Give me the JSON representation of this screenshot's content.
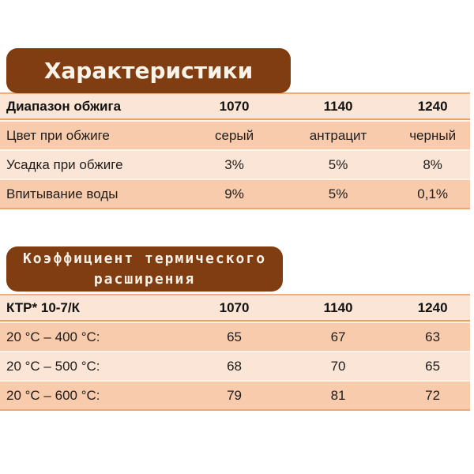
{
  "colors": {
    "heading_background": "#803D12",
    "heading_text": "#FBF2E8",
    "row_light": "#FBE5D6",
    "row_dark": "#F8CBAD",
    "border_orange": "#EEA873",
    "body_text": "#1F1C1A"
  },
  "section1": {
    "title": "Характеристики",
    "table": {
      "header": [
        "Диапазон обжига",
        "1070",
        "1140",
        "1240"
      ],
      "rows": [
        [
          "Цвет при обжиге",
          "серый",
          "антрацит",
          "черный"
        ],
        [
          "Усадка при обжиге",
          "3%",
          "5%",
          "8%"
        ],
        [
          "Впитывание воды",
          "9%",
          "5%",
          "0,1%"
        ]
      ]
    }
  },
  "section2": {
    "title_line1": "Коэффициент термического",
    "title_line2": "расширения",
    "table": {
      "header": [
        "КТР* 10-7/К",
        "1070",
        "1140",
        "1240"
      ],
      "rows": [
        [
          "20 °C – 400 °C:",
          "65",
          "67",
          "63"
        ],
        [
          "20 °C – 500 °C:",
          "68",
          "70",
          "65"
        ],
        [
          "20 °C – 600 °C:",
          "79",
          "81",
          "72"
        ]
      ]
    }
  }
}
